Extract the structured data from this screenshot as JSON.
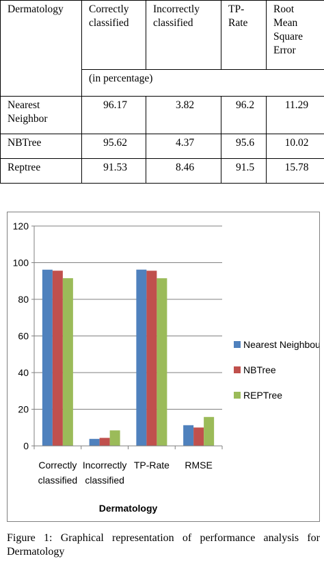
{
  "table": {
    "header": [
      "Dermatology",
      "Correctly classified",
      "Incorrectly classified",
      "TP-Rate",
      "Root Mean Square Error"
    ],
    "unit_note": "(in percentage)",
    "rows": [
      {
        "name": "Nearest Neighbor",
        "correct": "96.17",
        "incorrect": "3.82",
        "tp": "96.2",
        "rmse": "11.29"
      },
      {
        "name": "NBTree",
        "correct": "95.62",
        "incorrect": "4.37",
        "tp": "95.6",
        "rmse": "10.02"
      },
      {
        "name": "Reptree",
        "correct": "91.53",
        "incorrect": "8.46",
        "tp": "91.5",
        "rmse": "15.78"
      }
    ]
  },
  "chart_data": {
    "type": "bar",
    "categories": [
      "Correctly classified",
      "Incorrectly classified",
      "TP-Rate",
      "RMSE"
    ],
    "series": [
      {
        "name": "Nearest Neighbour",
        "color": "#4f81bd",
        "values": [
          96.17,
          3.82,
          96.2,
          11.29
        ]
      },
      {
        "name": "NBTree",
        "color": "#c0504d",
        "values": [
          95.62,
          4.37,
          95.6,
          10.02
        ]
      },
      {
        "name": "REPTree",
        "color": "#9bbb59",
        "values": [
          91.53,
          8.46,
          91.5,
          15.78
        ]
      }
    ],
    "xlabel": "Dermatology",
    "ylabel": "",
    "ylim": [
      0,
      120
    ],
    "yticks": [
      0,
      20,
      40,
      60,
      80,
      100,
      120
    ],
    "grid": true,
    "legend": "right"
  },
  "caption": "Figure 1: Graphical representation of performance analysis for Dermatology"
}
